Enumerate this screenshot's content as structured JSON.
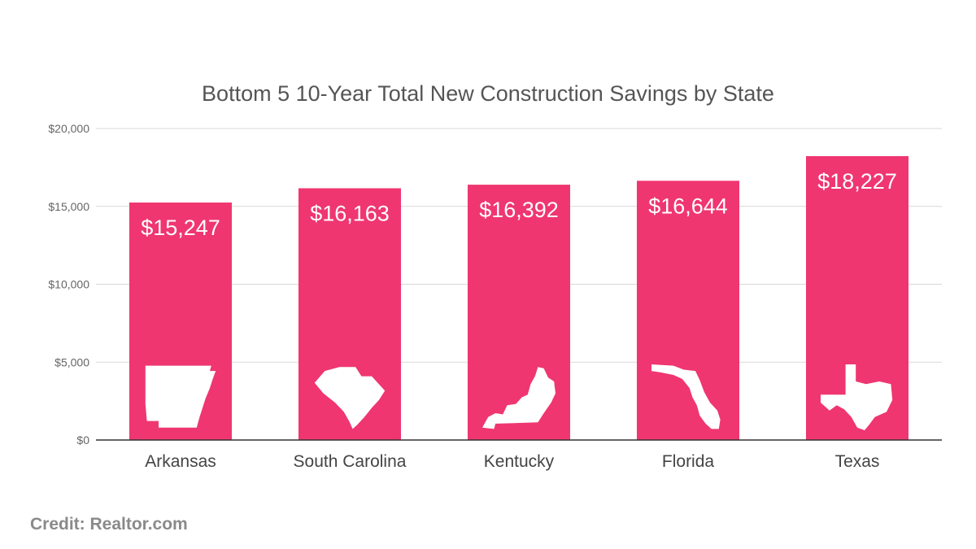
{
  "chart_data": {
    "type": "bar",
    "title": "Bottom 5 10-Year Total New Construction Savings by State",
    "categories": [
      "Arkansas",
      "South Carolina",
      "Kentucky",
      "Florida",
      "Texas"
    ],
    "values": [
      15247,
      16163,
      16392,
      16644,
      18227
    ],
    "data_labels": [
      "$15,247",
      "$16,163",
      "$16,392",
      "$16,644",
      "$18,227"
    ],
    "ylim": [
      0,
      20000
    ],
    "yticks": [
      0,
      5000,
      10000,
      15000,
      20000
    ],
    "ytick_labels": [
      "$0",
      "$5,000",
      "$10,000",
      "$15,000",
      "$20,000"
    ],
    "grid": true,
    "legend": "none",
    "bar_color": "#ef3670",
    "bar_icons": [
      "arkansas-state-icon",
      "south-carolina-state-icon",
      "kentucky-state-icon",
      "florida-state-icon",
      "texas-state-icon"
    ]
  },
  "credit": "Credit: Realtor.com"
}
